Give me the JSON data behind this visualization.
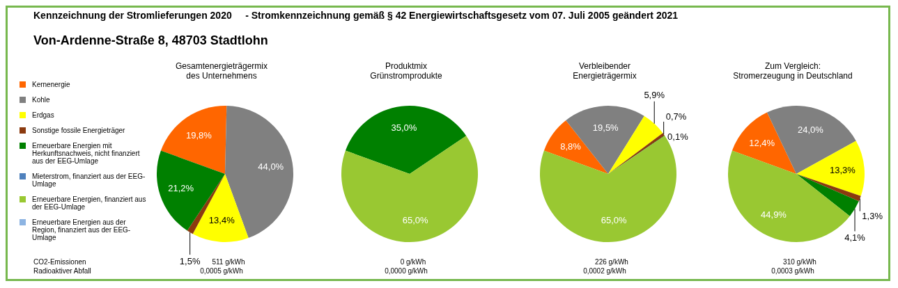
{
  "chart_data": [
    {
      "type": "other",
      "title": "Kennzeichnung der Stromlieferungen 2020     - Stromkennzeichnung gemäß § 42 Energiewirtschaftsgesetz vom 07. Juli 2005 geändert 2021",
      "subtitle": "Von-Ardenne-Straße 8, 48703 Stadtlohn",
      "annotations": [
        "CO2-Emissionen",
        "Radioaktiver Abfall"
      ]
    },
    {
      "type": "pie",
      "title": "Gesamtenergieträgermix\ndes Unternehmens",
      "legend": "left",
      "categories": [
        "Kernenergie",
        "Kohle",
        "Erdgas",
        "Sonstige fossile Energieträger",
        "Erneuerbare Energien mit Herkunftsnachweis, nicht finanziert aus der EEG-Umlage",
        "Mieterstrom, finanziert aus der EEG-Umlage",
        "Erneuerbare Energien, finanziert aus der EEG-Umlage",
        "Erneuerbare Energien aus der Region, finanziert aus der EEG-Umlage"
      ],
      "colors": [
        "#ff6600",
        "#808080",
        "#ffff00",
        "#8b3a0f",
        "#008000",
        "#4f81bd",
        "#99c832",
        "#8db4e2"
      ],
      "values": [
        19.8,
        44.0,
        13.4,
        1.5,
        21.2,
        0,
        0,
        0
      ],
      "value_labels": [
        "19,8%",
        "44,0%",
        "13,4%",
        "1,5%",
        "21,2%",
        null,
        null,
        null
      ],
      "annotations": [
        "511 g/kWh",
        "0,0005 g/kWh"
      ]
    },
    {
      "type": "pie",
      "title": "Produktmix\nGrünstromprodukte",
      "colors": [
        "#ff6600",
        "#808080",
        "#ffff00",
        "#8b3a0f",
        "#008000",
        "#4f81bd",
        "#99c832",
        "#8db4e2"
      ],
      "values": [
        0,
        0,
        0,
        0,
        35.0,
        0,
        65.0,
        0
      ],
      "value_labels": [
        null,
        null,
        null,
        null,
        "35,0%",
        null,
        "65,0%",
        null
      ],
      "annotations": [
        "0 g/kWh",
        "0,0000 g/kWh"
      ]
    },
    {
      "type": "pie",
      "title": "Verbleibender\nEnergieträgermix",
      "colors": [
        "#ff6600",
        "#808080",
        "#ffff00",
        "#8b3a0f",
        "#008000",
        "#4f81bd",
        "#99c832",
        "#8db4e2"
      ],
      "values": [
        8.8,
        19.5,
        5.9,
        0.7,
        0.1,
        0,
        65.0,
        0
      ],
      "value_labels": [
        "8,8%",
        "19,5%",
        "5,9%",
        "0,7%",
        "0,1%",
        null,
        "65,0%",
        null
      ],
      "annotations": [
        "226 g/kWh",
        "0,0002 g/kWh"
      ]
    },
    {
      "type": "pie",
      "title": "Zum Vergleich:\nStromerzeugung in Deutschland",
      "colors": [
        "#ff6600",
        "#808080",
        "#ffff00",
        "#8b3a0f",
        "#008000",
        "#4f81bd",
        "#99c832",
        "#8db4e2"
      ],
      "values": [
        12.4,
        24.0,
        13.3,
        1.3,
        4.1,
        0,
        44.9,
        0
      ],
      "value_labels": [
        "12,4%",
        "24,0%",
        "13,3%",
        "1,3%",
        "4,1%",
        null,
        "44,9%",
        null
      ],
      "annotations": [
        "310 g/kWh",
        "0,0003 g/kWh"
      ]
    }
  ]
}
